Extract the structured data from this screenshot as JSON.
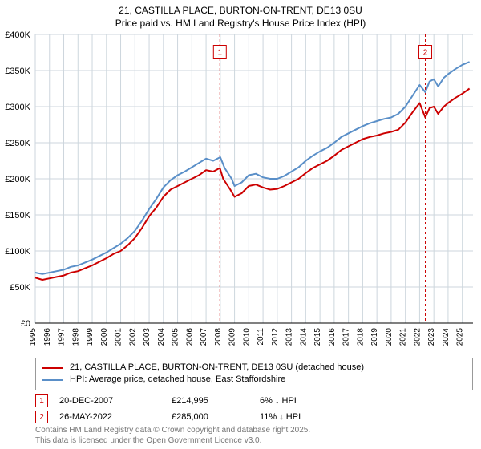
{
  "title_line1": "21, CASTILLA PLACE, BURTON-ON-TRENT, DE13 0SU",
  "title_line2": "Price paid vs. HM Land Registry's House Price Index (HPI)",
  "title_fontsize": 12,
  "chart": {
    "type": "line",
    "background_color": "#ffffff",
    "grid_color": "#cdd6dd",
    "grid_linewidth": 1,
    "x": {
      "min": 1995,
      "max": 2025.75,
      "ticks": [
        1995,
        1996,
        1997,
        1998,
        1999,
        2000,
        2001,
        2002,
        2003,
        2004,
        2005,
        2006,
        2007,
        2008,
        2009,
        2010,
        2011,
        2012,
        2013,
        2014,
        2015,
        2016,
        2017,
        2018,
        2019,
        2020,
        2021,
        2022,
        2023,
        2024,
        2025
      ],
      "tick_label_rotation": -90,
      "tick_fontsize": 10
    },
    "y": {
      "min": 0,
      "max": 400000,
      "ticks": [
        0,
        50000,
        100000,
        150000,
        200000,
        250000,
        300000,
        350000,
        400000
      ],
      "tick_labels": [
        "£0",
        "£50K",
        "£100K",
        "£150K",
        "£200K",
        "£250K",
        "£300K",
        "£350K",
        "£400K"
      ],
      "tick_fontsize": 11
    },
    "series": [
      {
        "name": "price_paid",
        "label": "21, CASTILLA PLACE, BURTON-ON-TRENT, DE13 0SU (detached house)",
        "color": "#cc0000",
        "linewidth": 2,
        "points": [
          [
            1995.0,
            63000
          ],
          [
            1995.5,
            60000
          ],
          [
            1996.0,
            62000
          ],
          [
            1996.5,
            64000
          ],
          [
            1997.0,
            66000
          ],
          [
            1997.5,
            70000
          ],
          [
            1998.0,
            72000
          ],
          [
            1998.5,
            76000
          ],
          [
            1999.0,
            80000
          ],
          [
            1999.5,
            85000
          ],
          [
            2000.0,
            90000
          ],
          [
            2000.5,
            96000
          ],
          [
            2001.0,
            100000
          ],
          [
            2001.5,
            108000
          ],
          [
            2002.0,
            118000
          ],
          [
            2002.5,
            132000
          ],
          [
            2003.0,
            148000
          ],
          [
            2003.5,
            160000
          ],
          [
            2004.0,
            175000
          ],
          [
            2004.5,
            185000
          ],
          [
            2005.0,
            190000
          ],
          [
            2005.5,
            195000
          ],
          [
            2006.0,
            200000
          ],
          [
            2006.5,
            205000
          ],
          [
            2007.0,
            212000
          ],
          [
            2007.5,
            210000
          ],
          [
            2007.97,
            214995
          ],
          [
            2008.2,
            200000
          ],
          [
            2008.7,
            185000
          ],
          [
            2009.0,
            175000
          ],
          [
            2009.5,
            180000
          ],
          [
            2010.0,
            190000
          ],
          [
            2010.5,
            192000
          ],
          [
            2011.0,
            188000
          ],
          [
            2011.5,
            185000
          ],
          [
            2012.0,
            186000
          ],
          [
            2012.5,
            190000
          ],
          [
            2013.0,
            195000
          ],
          [
            2013.5,
            200000
          ],
          [
            2014.0,
            208000
          ],
          [
            2014.5,
            215000
          ],
          [
            2015.0,
            220000
          ],
          [
            2015.5,
            225000
          ],
          [
            2016.0,
            232000
          ],
          [
            2016.5,
            240000
          ],
          [
            2017.0,
            245000
          ],
          [
            2017.5,
            250000
          ],
          [
            2018.0,
            255000
          ],
          [
            2018.5,
            258000
          ],
          [
            2019.0,
            260000
          ],
          [
            2019.5,
            263000
          ],
          [
            2020.0,
            265000
          ],
          [
            2020.5,
            268000
          ],
          [
            2021.0,
            278000
          ],
          [
            2021.5,
            292000
          ],
          [
            2022.0,
            305000
          ],
          [
            2022.4,
            285000
          ],
          [
            2022.7,
            298000
          ],
          [
            2023.0,
            300000
          ],
          [
            2023.3,
            290000
          ],
          [
            2023.7,
            300000
          ],
          [
            2024.0,
            305000
          ],
          [
            2024.5,
            312000
          ],
          [
            2025.0,
            318000
          ],
          [
            2025.5,
            325000
          ]
        ]
      },
      {
        "name": "hpi",
        "label": "HPI: Average price, detached house, East Staffordshire",
        "color": "#5a8fc8",
        "linewidth": 2,
        "points": [
          [
            1995.0,
            70000
          ],
          [
            1995.5,
            68000
          ],
          [
            1996.0,
            70000
          ],
          [
            1996.5,
            72000
          ],
          [
            1997.0,
            74000
          ],
          [
            1997.5,
            78000
          ],
          [
            1998.0,
            80000
          ],
          [
            1998.5,
            84000
          ],
          [
            1999.0,
            88000
          ],
          [
            1999.5,
            93000
          ],
          [
            2000.0,
            98000
          ],
          [
            2000.5,
            104000
          ],
          [
            2001.0,
            110000
          ],
          [
            2001.5,
            118000
          ],
          [
            2002.0,
            128000
          ],
          [
            2002.5,
            142000
          ],
          [
            2003.0,
            158000
          ],
          [
            2003.5,
            172000
          ],
          [
            2004.0,
            188000
          ],
          [
            2004.5,
            198000
          ],
          [
            2005.0,
            205000
          ],
          [
            2005.5,
            210000
          ],
          [
            2006.0,
            216000
          ],
          [
            2006.5,
            222000
          ],
          [
            2007.0,
            228000
          ],
          [
            2007.5,
            225000
          ],
          [
            2008.0,
            230000
          ],
          [
            2008.3,
            215000
          ],
          [
            2008.8,
            200000
          ],
          [
            2009.0,
            190000
          ],
          [
            2009.5,
            195000
          ],
          [
            2010.0,
            205000
          ],
          [
            2010.5,
            207000
          ],
          [
            2011.0,
            202000
          ],
          [
            2011.5,
            200000
          ],
          [
            2012.0,
            200000
          ],
          [
            2012.5,
            204000
          ],
          [
            2013.0,
            210000
          ],
          [
            2013.5,
            216000
          ],
          [
            2014.0,
            225000
          ],
          [
            2014.5,
            232000
          ],
          [
            2015.0,
            238000
          ],
          [
            2015.5,
            243000
          ],
          [
            2016.0,
            250000
          ],
          [
            2016.5,
            258000
          ],
          [
            2017.0,
            263000
          ],
          [
            2017.5,
            268000
          ],
          [
            2018.0,
            273000
          ],
          [
            2018.5,
            277000
          ],
          [
            2019.0,
            280000
          ],
          [
            2019.5,
            283000
          ],
          [
            2020.0,
            285000
          ],
          [
            2020.5,
            290000
          ],
          [
            2021.0,
            300000
          ],
          [
            2021.5,
            315000
          ],
          [
            2022.0,
            330000
          ],
          [
            2022.4,
            320000
          ],
          [
            2022.7,
            335000
          ],
          [
            2023.0,
            338000
          ],
          [
            2023.3,
            328000
          ],
          [
            2023.7,
            340000
          ],
          [
            2024.0,
            345000
          ],
          [
            2024.5,
            352000
          ],
          [
            2025.0,
            358000
          ],
          [
            2025.5,
            362000
          ]
        ]
      }
    ],
    "event_markers": [
      {
        "id": "1",
        "x": 2007.97,
        "color": "#cc0000",
        "line_dash": "3,3",
        "label_y": 375000
      },
      {
        "id": "2",
        "x": 2022.4,
        "color": "#cc0000",
        "line_dash": "3,3",
        "label_y": 375000
      }
    ]
  },
  "legend": {
    "border_color": "#999999",
    "items": [
      {
        "color": "#cc0000",
        "text": "21, CASTILLA PLACE, BURTON-ON-TRENT, DE13 0SU (detached house)"
      },
      {
        "color": "#5a8fc8",
        "text": "HPI: Average price, detached house, East Staffordshire"
      }
    ]
  },
  "marker_rows": [
    {
      "n": "1",
      "color": "#cc0000",
      "date": "20-DEC-2007",
      "price": "£214,995",
      "delta": "6% ↓ HPI"
    },
    {
      "n": "2",
      "color": "#cc0000",
      "date": "26-MAY-2022",
      "price": "£285,000",
      "delta": "11% ↓ HPI"
    }
  ],
  "footer_line1": "Contains HM Land Registry data © Crown copyright and database right 2025.",
  "footer_line2": "This data is licensed under the Open Government Licence v3.0.",
  "footer_color": "#777777"
}
